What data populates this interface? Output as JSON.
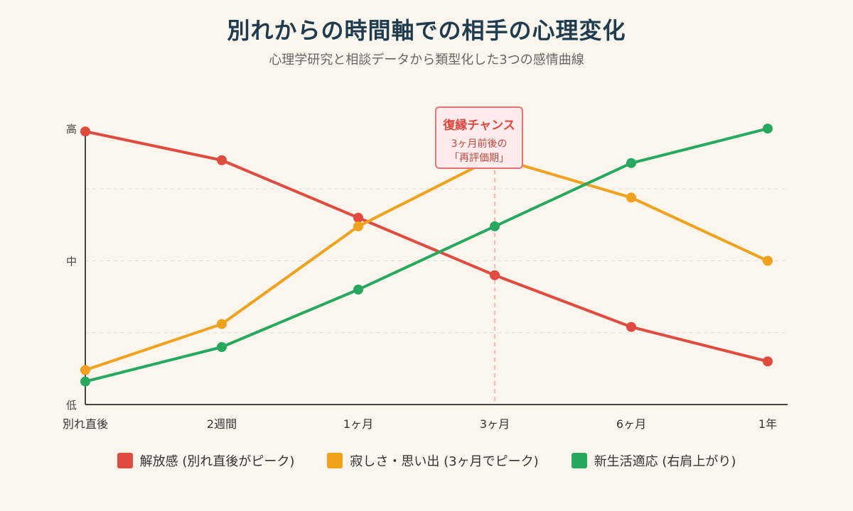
{
  "header": {
    "title": "別れからの時間軸での相手の心理変化",
    "subtitle": "心理学研究と相談データから類型化した3つの感情曲線"
  },
  "callout": {
    "title": "復縁チャンス",
    "line1": "3ヶ月前後の",
    "line2": "「再評価期」",
    "at": "3ヶ月"
  },
  "chart_data": {
    "type": "line",
    "title": "別れからの時間軸での相手の心理変化",
    "subtitle": "心理学研究と相談データから類型化した3つの感情曲線",
    "x": [
      "別れ直後",
      "2週間",
      "1ヶ月",
      "3ヶ月",
      "6ヶ月",
      "1年"
    ],
    "x_positions": [
      0,
      0.5,
      1,
      3,
      6,
      12
    ],
    "y_ticks": [
      "低",
      "中",
      "高"
    ],
    "ylim": [
      0,
      10
    ],
    "grid": true,
    "legend_position": "bottom",
    "series": [
      {
        "name": "解放感 (別れ直後がピーク)",
        "color": "#e04b3f",
        "values": [
          9.5,
          8.5,
          6.5,
          4.5,
          2.7,
          1.5
        ]
      },
      {
        "name": "寂しさ・思い出 (3ヶ月でピーク)",
        "color": "#f0a21e",
        "values": [
          1.2,
          2.8,
          6.2,
          8.6,
          7.2,
          5.0
        ]
      },
      {
        "name": "新生活適応 (右肩上がり)",
        "color": "#27a85f",
        "values": [
          0.8,
          2.0,
          4.0,
          6.2,
          8.4,
          9.6
        ]
      }
    ]
  }
}
